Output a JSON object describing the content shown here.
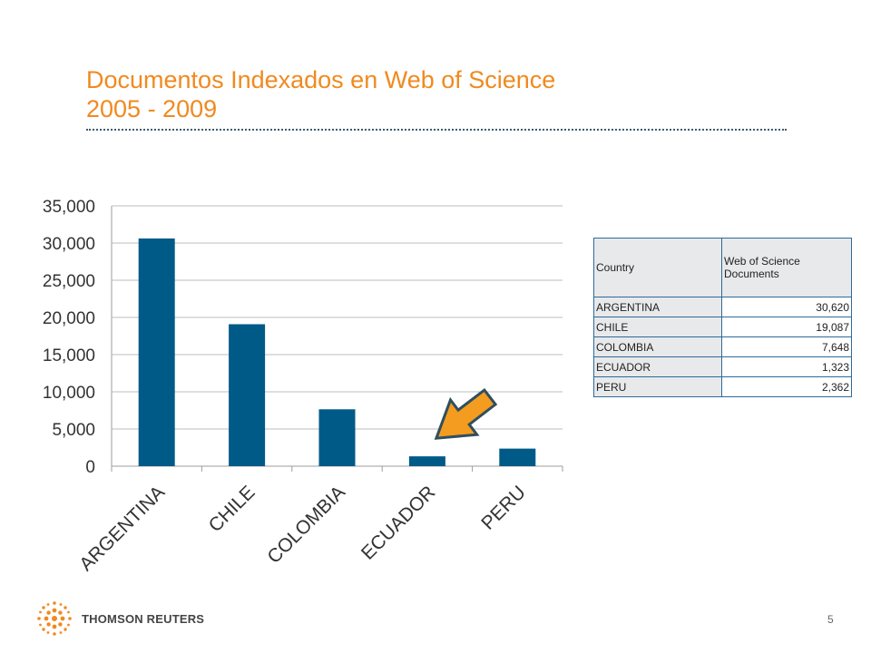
{
  "slide": {
    "title_line1": "Documentos Indexados  en Web of Science",
    "title_line2": "2005 - 2009",
    "page_number": "5",
    "logo_text": "THOMSON REUTERS",
    "accent_color": "#f08a1f",
    "bar_color": "#005a87",
    "arrow_color": "#f39c1f"
  },
  "chart_data": {
    "type": "bar",
    "categories": [
      "ARGENTINA",
      "CHILE",
      "COLOMBIA",
      "ECUADOR",
      "PERU"
    ],
    "values": [
      30620,
      19087,
      7648,
      1323,
      2362
    ],
    "title": "",
    "xlabel": "",
    "ylabel": "",
    "ylim": [
      0,
      35000
    ],
    "yticks": [
      0,
      5000,
      10000,
      15000,
      20000,
      25000,
      30000,
      35000
    ],
    "grid": true,
    "legend": "none",
    "annotation": "arrow pointing to ECUADOR"
  },
  "table": {
    "headers": [
      "Country",
      "Web of Science Documents"
    ],
    "rows": [
      [
        "ARGENTINA",
        "30,620"
      ],
      [
        "CHILE",
        "19,087"
      ],
      [
        "COLOMBIA",
        "7,648"
      ],
      [
        "ECUADOR",
        "1,323"
      ],
      [
        "PERU",
        "2,362"
      ]
    ]
  }
}
